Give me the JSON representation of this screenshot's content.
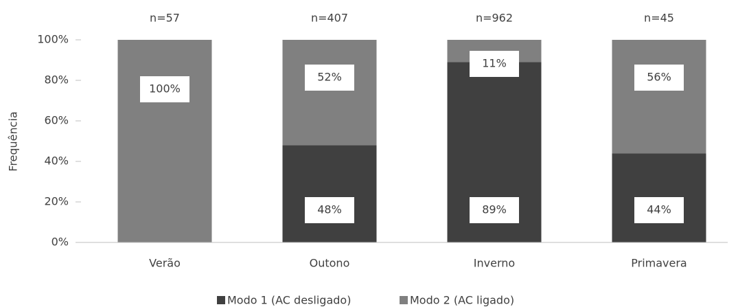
{
  "chart_data": {
    "type": "stacked_bar",
    "y_label": "Frequência",
    "categories": [
      "Verão",
      "Outono",
      "Inverno",
      "Primavera"
    ],
    "annotations": [
      "n=57",
      "n=407",
      "n=962",
      "n=45"
    ],
    "series": [
      {
        "name": "Modo 1 (AC desligado)",
        "color": "#404040",
        "values": [
          0,
          48,
          89,
          44
        ],
        "value_labels": [
          null,
          "48%",
          "89%",
          "44%"
        ]
      },
      {
        "name": "Modo 2 (AC ligado)",
        "color": "#808080",
        "values": [
          100,
          52,
          11,
          56
        ],
        "value_labels": [
          "100%",
          "52%",
          "11%",
          "56%"
        ]
      }
    ],
    "ylim": [
      0,
      100
    ],
    "yticks": [
      {
        "value": 0,
        "label": "0%"
      },
      {
        "value": 20,
        "label": "20%"
      },
      {
        "value": 40,
        "label": "40%"
      },
      {
        "value": 60,
        "label": "60%"
      },
      {
        "value": 80,
        "label": "80%"
      },
      {
        "value": 100,
        "label": "100%"
      }
    ],
    "grid": false,
    "legend": "bottom"
  }
}
